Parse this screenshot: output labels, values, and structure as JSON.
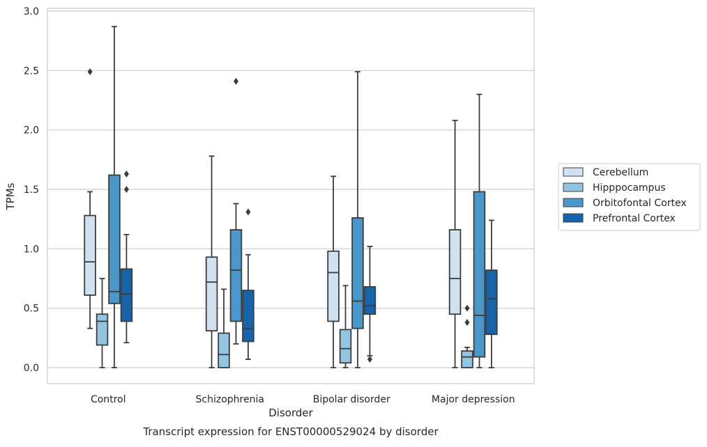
{
  "chart_data": {
    "type": "box",
    "title": "Transcript expression for ENST00000529024 by disorder",
    "xlabel": "Disorder",
    "ylabel": "TPMs",
    "ylim": [
      -0.14,
      3.02
    ],
    "yticks": [
      0.0,
      0.5,
      1.0,
      1.5,
      2.0,
      2.5,
      3.0
    ],
    "ytick_labels": [
      "0.0",
      "0.5",
      "1.0",
      "1.5",
      "2.0",
      "2.5",
      "3.0"
    ],
    "grid": "horizontal",
    "legend_position": "right",
    "categories": [
      "Control",
      "Schizophrenia",
      "Bipolar disorder",
      "Major depression"
    ],
    "series": [
      {
        "name": "Cerebellum",
        "color": "#d0e1f2",
        "boxes": [
          {
            "whisker_low": 0.33,
            "q1": 0.61,
            "median": 0.89,
            "q3": 1.28,
            "whisker_high": 1.48,
            "outliers": [
              2.49
            ]
          },
          {
            "whisker_low": 0.0,
            "q1": 0.31,
            "median": 0.72,
            "q3": 0.93,
            "whisker_high": 1.78,
            "outliers": []
          },
          {
            "whisker_low": 0.0,
            "q1": 0.39,
            "median": 0.8,
            "q3": 0.98,
            "whisker_high": 1.61,
            "outliers": []
          },
          {
            "whisker_low": 0.0,
            "q1": 0.45,
            "median": 0.75,
            "q3": 1.16,
            "whisker_high": 2.08,
            "outliers": []
          }
        ]
      },
      {
        "name": "Hipppocampus",
        "color": "#94c4df",
        "boxes": [
          {
            "whisker_low": 0.0,
            "q1": 0.19,
            "median": 0.39,
            "q3": 0.45,
            "whisker_high": 0.75,
            "outliers": []
          },
          {
            "whisker_low": 0.0,
            "q1": 0.0,
            "median": 0.11,
            "q3": 0.29,
            "whisker_high": 0.66,
            "outliers": []
          },
          {
            "whisker_low": 0.0,
            "q1": 0.04,
            "median": 0.16,
            "q3": 0.32,
            "whisker_high": 0.69,
            "outliers": []
          },
          {
            "whisker_low": 0.0,
            "q1": 0.0,
            "median": 0.09,
            "q3": 0.14,
            "whisker_high": 0.17,
            "outliers": [
              0.38,
              0.5
            ]
          }
        ]
      },
      {
        "name": "Orbitofontal Cortex",
        "color": "#4a98c9",
        "boxes": [
          {
            "whisker_low": 0.0,
            "q1": 0.54,
            "median": 0.64,
            "q3": 1.62,
            "whisker_high": 2.87,
            "outliers": []
          },
          {
            "whisker_low": 0.2,
            "q1": 0.39,
            "median": 0.82,
            "q3": 1.16,
            "whisker_high": 1.38,
            "outliers": [
              2.41
            ]
          },
          {
            "whisker_low": 0.0,
            "q1": 0.33,
            "median": 0.56,
            "q3": 1.26,
            "whisker_high": 2.49,
            "outliers": []
          },
          {
            "whisker_low": 0.0,
            "q1": 0.09,
            "median": 0.44,
            "q3": 1.48,
            "whisker_high": 2.3,
            "outliers": []
          }
        ]
      },
      {
        "name": "Prefrontal Cortex",
        "color": "#1764ab",
        "boxes": [
          {
            "whisker_low": 0.21,
            "q1": 0.39,
            "median": 0.62,
            "q3": 0.83,
            "whisker_high": 1.12,
            "outliers": [
              1.5,
              1.63
            ]
          },
          {
            "whisker_low": 0.07,
            "q1": 0.22,
            "median": 0.33,
            "q3": 0.65,
            "whisker_high": 0.95,
            "outliers": [
              1.31
            ]
          },
          {
            "whisker_low": 0.1,
            "q1": 0.45,
            "median": 0.52,
            "q3": 0.68,
            "whisker_high": 1.02,
            "outliers": [
              0.07
            ]
          },
          {
            "whisker_low": 0.0,
            "q1": 0.28,
            "median": 0.58,
            "q3": 0.82,
            "whisker_high": 1.24,
            "outliers": []
          }
        ]
      }
    ]
  }
}
